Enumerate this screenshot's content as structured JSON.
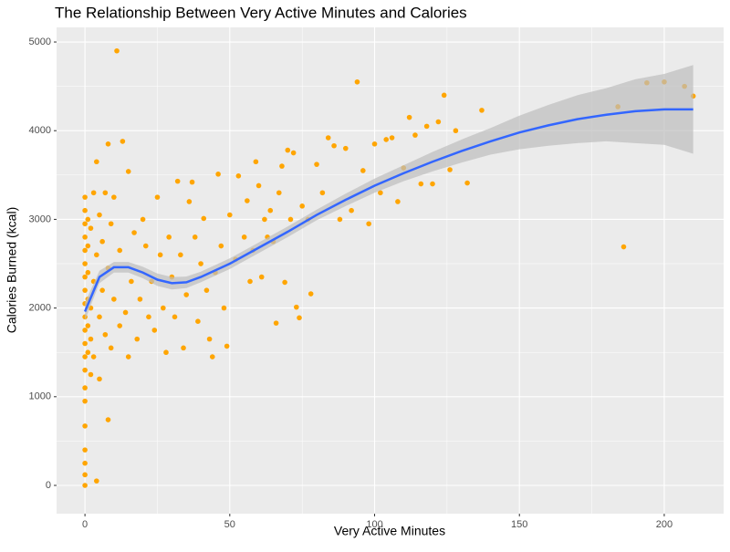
{
  "chart_data": {
    "type": "scatter",
    "title": "The Relationship Between Very Active Minutes and Calories",
    "x_label": "Very Active Minutes",
    "y_label": "Calories Burned (kcal)",
    "xlim": [
      -9.8,
      220.5
    ],
    "ylim": [
      -319,
      5165
    ],
    "xticks": [
      0,
      50,
      100,
      150,
      200
    ],
    "yticks": [
      0,
      1000,
      2000,
      3000,
      4000,
      5000
    ],
    "x_minor_grid": [
      25,
      75,
      125,
      175
    ],
    "y_minor_grid": [
      500,
      1500,
      2500,
      3500,
      4500
    ],
    "grid": true,
    "points": {
      "color": "#FFA500",
      "x": [
        0,
        0,
        0,
        0,
        0,
        0,
        0,
        0,
        0,
        0,
        0,
        0,
        0,
        0,
        0,
        0,
        0,
        0,
        0,
        0,
        0,
        1,
        1,
        1,
        1,
        1,
        1,
        2,
        2,
        2,
        2,
        3,
        3,
        3,
        4,
        4,
        4,
        5,
        5,
        5,
        6,
        6,
        7,
        7,
        8,
        8,
        8,
        9,
        9,
        10,
        10,
        11,
        12,
        12,
        13,
        14,
        15,
        15,
        16,
        17,
        18,
        19,
        20,
        21,
        22,
        23,
        24,
        25,
        26,
        27,
        28,
        29,
        30,
        31,
        32,
        33,
        34,
        35,
        36,
        37,
        38,
        39,
        40,
        41,
        42,
        43,
        44,
        45,
        46,
        47,
        48,
        49,
        50,
        52,
        53,
        55,
        56,
        57,
        58,
        59,
        60,
        61,
        62,
        63,
        64,
        65,
        66,
        67,
        68,
        69,
        70,
        71,
        72,
        73,
        74,
        75,
        77,
        78,
        80,
        82,
        84,
        86,
        88,
        90,
        92,
        94,
        96,
        98,
        100,
        102,
        104,
        106,
        108,
        110,
        112,
        114,
        116,
        118,
        120,
        122,
        124,
        126,
        128,
        132,
        137,
        184,
        186,
        194,
        200,
        207,
        210
      ],
      "y": [
        0,
        120,
        250,
        400,
        670,
        950,
        1100,
        1300,
        1450,
        1600,
        1750,
        1900,
        2050,
        2200,
        2350,
        2500,
        2650,
        2800,
        2950,
        3100,
        3250,
        1500,
        1800,
        2100,
        2400,
        2700,
        3000,
        1250,
        1650,
        2000,
        2900,
        1450,
        2300,
        3300,
        50,
        2600,
        3650,
        1200,
        1900,
        3050,
        2200,
        2750,
        1700,
        3300,
        740,
        2450,
        3850,
        1550,
        2950,
        2100,
        3250,
        4900,
        1800,
        2650,
        3880,
        1950,
        1450,
        3540,
        2300,
        2850,
        1650,
        2100,
        3000,
        2700,
        1900,
        2300,
        1750,
        3250,
        2600,
        2000,
        1500,
        2800,
        2350,
        1900,
        3430,
        2600,
        1550,
        2150,
        3200,
        3420,
        2800,
        1850,
        2500,
        3010,
        2200,
        1650,
        1450,
        2400,
        3510,
        2700,
        2000,
        1570,
        3050,
        2550,
        3490,
        2800,
        3210,
        2300,
        2650,
        3650,
        3380,
        2350,
        3000,
        2800,
        3100,
        2750,
        1830,
        3300,
        3600,
        2290,
        3780,
        3000,
        3750,
        2010,
        1890,
        3150,
        3000,
        2160,
        3620,
        3300,
        3920,
        3830,
        3000,
        3800,
        3100,
        4550,
        3550,
        2950,
        3850,
        3300,
        3900,
        3920,
        3200,
        3580,
        4150,
        3950,
        3400,
        4050,
        3400,
        4100,
        4400,
        3560,
        4000,
        3410,
        4230,
        4270,
        2690,
        4540,
        4550,
        4500,
        4390
      ]
    },
    "smooth": {
      "color": "#3366FF",
      "band_color": "#BEBEBE",
      "x": [
        0,
        5,
        10,
        15,
        20,
        25,
        30,
        35,
        40,
        50,
        60,
        70,
        80,
        90,
        100,
        110,
        120,
        130,
        140,
        150,
        160,
        170,
        180,
        190,
        200,
        210
      ],
      "y": [
        1960,
        2350,
        2460,
        2460,
        2400,
        2320,
        2280,
        2290,
        2350,
        2500,
        2680,
        2860,
        3050,
        3220,
        3380,
        3520,
        3650,
        3770,
        3880,
        3980,
        4060,
        4130,
        4180,
        4220,
        4240,
        4240
      ],
      "lower": [
        1860,
        2280,
        2400,
        2400,
        2335,
        2250,
        2210,
        2225,
        2290,
        2440,
        2620,
        2800,
        2990,
        3150,
        3300,
        3430,
        3540,
        3640,
        3730,
        3790,
        3830,
        3860,
        3880,
        3860,
        3840,
        3740
      ],
      "upper": [
        2060,
        2420,
        2520,
        2520,
        2465,
        2390,
        2350,
        2355,
        2410,
        2560,
        2740,
        2920,
        3110,
        3290,
        3460,
        3610,
        3760,
        3900,
        4030,
        4170,
        4290,
        4400,
        4480,
        4580,
        4640,
        4740
      ]
    }
  }
}
